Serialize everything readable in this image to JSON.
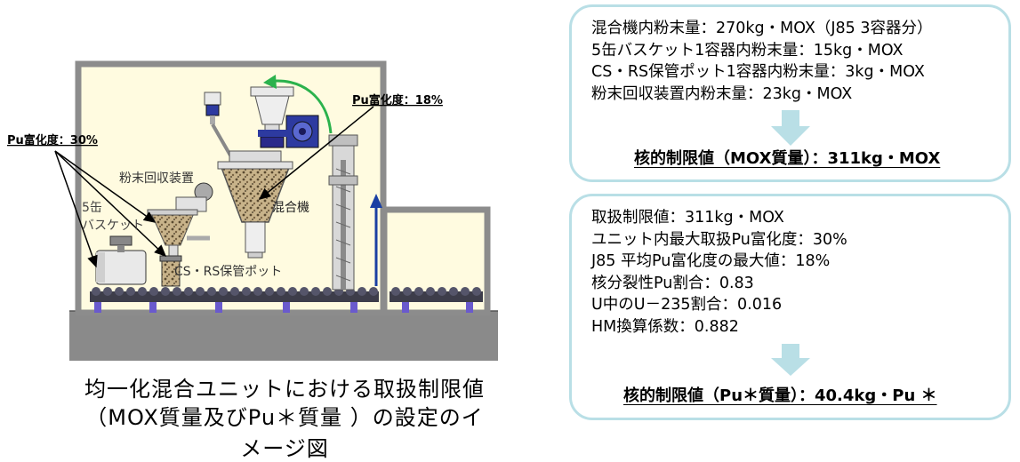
{
  "diagram": {
    "labels": {
      "pu_enrichment_left": "Pu富化度：30%",
      "pu_enrichment_top": "Pu富化度：18%",
      "powder_recovery": "粉末回収装置",
      "basket_line1": "5缶",
      "basket_line2": "バスケット",
      "mixer": "混合機",
      "storage_pot": "CS・RS保管ポット"
    },
    "caption_line1": "均一化混合ユニットにおける取扱制限値",
    "caption_line2": "（MOX質量及びPu＊質量 ）の設定のイメージ図"
  },
  "box_mox": {
    "lines": [
      "混合機内粉末量：270kg・MOX（J85 3容器分）",
      "5缶バスケット1容器内粉末量：15kg・MOX",
      "CS・RS保管ポット1容器内粉末量：3kg・MOX",
      "粉末回収装置内粉末量：23kg・MOX"
    ],
    "result": "核的制限値（MOX質量）：311kg・MOX"
  },
  "box_pu": {
    "lines": [
      "取扱制限値：311kg・MOX",
      "ユニット内最大取扱Pu富化度：30%",
      "J85 平均Pu富化度の最大値：18%",
      "核分裂性Pu割合：0.83",
      "U中のU－235割合：0.016",
      "HM換算係数：0.882"
    ],
    "result": "核的制限値（Pu＊質量）：40.4kg・Pu ＊"
  },
  "colors": {
    "room_fill": "#fffbe0",
    "room_wall": "#8c8c8c",
    "box_border": "#b9dfe6",
    "arrow_fill": "#b9dfe6",
    "green_arrow": "#2bb24c",
    "blue_arrow": "#1a3fa3",
    "roller": "#3d3d4a",
    "support": "#6a5acd"
  }
}
